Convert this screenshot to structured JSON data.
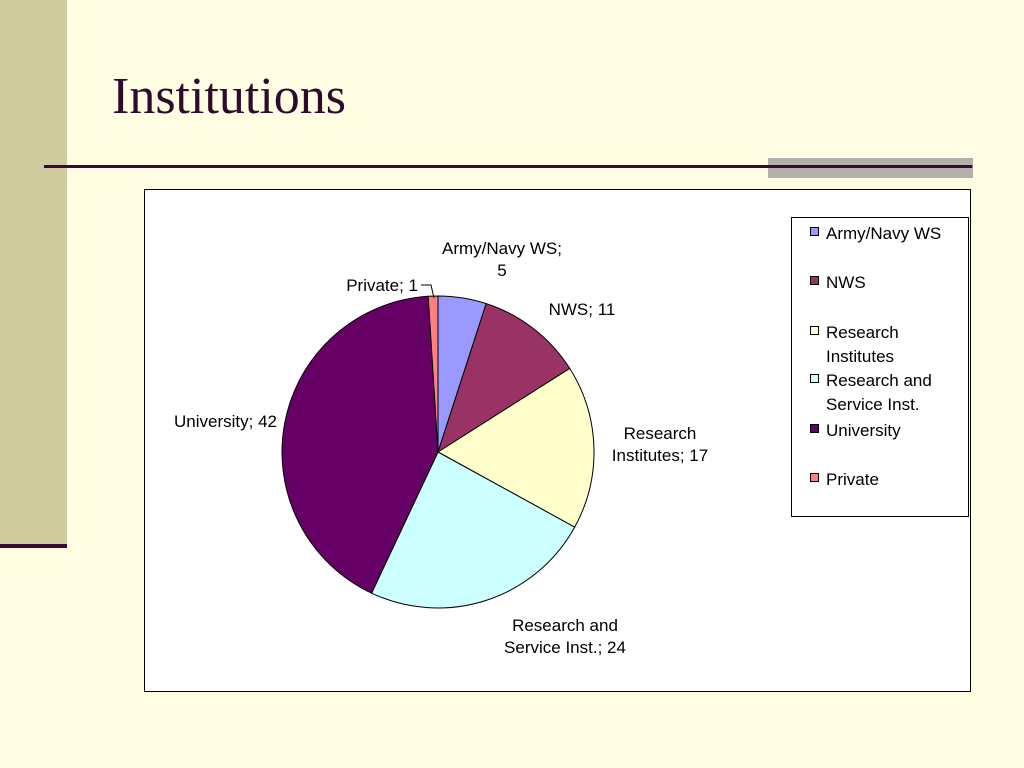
{
  "slide": {
    "title": "Institutions"
  },
  "chart_data": {
    "type": "pie",
    "title": "",
    "categories": [
      "Army/Navy WS",
      "NWS",
      "Research Institutes",
      "Research and Service Inst.",
      "University",
      "Private"
    ],
    "values": [
      5,
      11,
      17,
      24,
      42,
      1
    ],
    "colors": [
      "#9999FF",
      "#993366",
      "#FFFFCC",
      "#CCFFFF",
      "#660066",
      "#FF8080"
    ],
    "data_labels": [
      [
        "Army/Navy WS;",
        "5"
      ],
      [
        "NWS; 11"
      ],
      [
        "Research",
        "Institutes; 17"
      ],
      [
        "Research and",
        "Service Inst.; 24"
      ],
      [
        "University; 42"
      ],
      [
        "Private; 1"
      ]
    ],
    "legend": {
      "position": "right",
      "entries": [
        [
          "Army/Navy WS"
        ],
        [
          "NWS"
        ],
        [
          "Research",
          "Institutes"
        ],
        [
          "Research and",
          "Service Inst."
        ],
        [
          "University"
        ],
        [
          "Private"
        ]
      ]
    }
  }
}
